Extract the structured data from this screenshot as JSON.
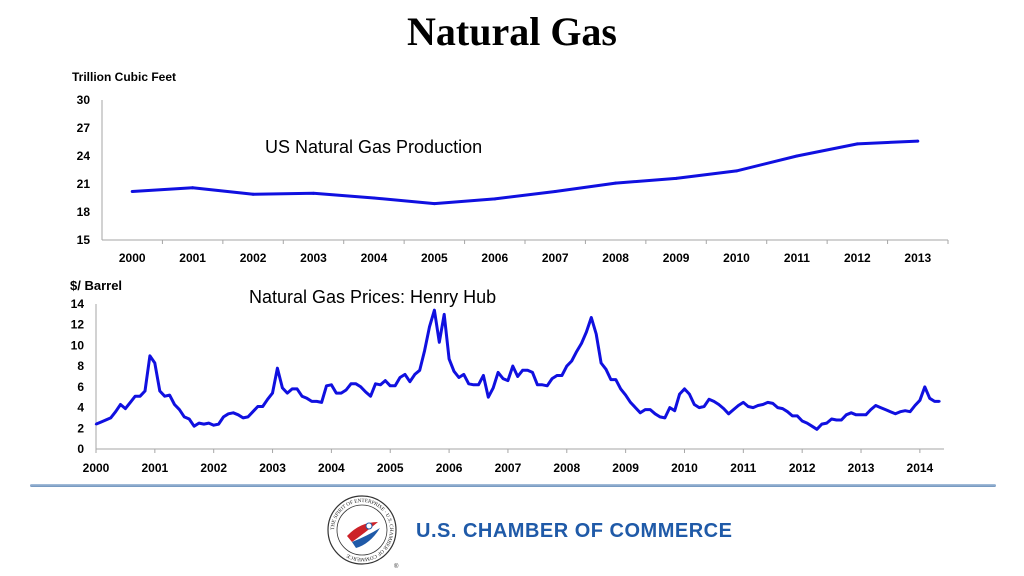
{
  "page": {
    "title": "Natural Gas"
  },
  "colors": {
    "series": "#1010e0",
    "axis": "#a6a6a6",
    "brand": "#1f5aa8",
    "seal_red": "#cc2229"
  },
  "chart_data": [
    {
      "type": "line",
      "title": "US Natural Gas Production",
      "ylabel": "Trillion Cubic Feet",
      "xlabel": "",
      "ylim": [
        15,
        30
      ],
      "yticks": [
        15,
        18,
        21,
        24,
        27,
        30
      ],
      "categories": [
        "2000",
        "2001",
        "2002",
        "2003",
        "2004",
        "2005",
        "2006",
        "2007",
        "2008",
        "2009",
        "2010",
        "2011",
        "2012",
        "2013"
      ],
      "values": [
        20.2,
        20.6,
        19.9,
        20.0,
        19.5,
        18.9,
        19.4,
        20.2,
        21.1,
        21.6,
        22.4,
        24.0,
        25.3,
        25.6
      ],
      "grid": false,
      "legend": "none"
    },
    {
      "type": "line",
      "title": "Natural Gas Prices: Henry Hub",
      "ylabel": "$/ Barrel",
      "xlabel": "",
      "ylim": [
        0,
        14
      ],
      "yticks": [
        0,
        2,
        4,
        6,
        8,
        10,
        12,
        14
      ],
      "xticks": [
        "2000",
        "2001",
        "2002",
        "2003",
        "2004",
        "2005",
        "2006",
        "2007",
        "2008",
        "2009",
        "2010",
        "2011",
        "2012",
        "2013",
        "2014"
      ],
      "x_start": "2000-01",
      "x_frequency": "monthly",
      "values": [
        2.4,
        2.6,
        2.8,
        3.0,
        3.6,
        4.3,
        3.9,
        4.5,
        5.1,
        5.1,
        5.6,
        9.0,
        8.3,
        5.6,
        5.1,
        5.2,
        4.3,
        3.8,
        3.1,
        2.9,
        2.2,
        2.5,
        2.4,
        2.5,
        2.3,
        2.4,
        3.1,
        3.4,
        3.5,
        3.3,
        3.0,
        3.1,
        3.6,
        4.1,
        4.1,
        4.8,
        5.4,
        7.8,
        5.9,
        5.4,
        5.8,
        5.8,
        5.1,
        4.9,
        4.6,
        4.6,
        4.5,
        6.1,
        6.2,
        5.4,
        5.4,
        5.7,
        6.3,
        6.3,
        6.0,
        5.5,
        5.1,
        6.3,
        6.2,
        6.6,
        6.1,
        6.1,
        6.9,
        7.2,
        6.5,
        7.2,
        7.6,
        9.5,
        11.8,
        13.4,
        10.3,
        13.0,
        8.7,
        7.5,
        6.9,
        7.2,
        6.3,
        6.2,
        6.2,
        7.1,
        5.0,
        5.9,
        7.4,
        6.8,
        6.6,
        8.0,
        7.0,
        7.6,
        7.6,
        7.4,
        6.2,
        6.2,
        6.1,
        6.8,
        7.1,
        7.1,
        8.0,
        8.5,
        9.4,
        10.2,
        11.3,
        12.7,
        11.1,
        8.3,
        7.7,
        6.7,
        6.7,
        5.8,
        5.2,
        4.5,
        4.0,
        3.5,
        3.8,
        3.8,
        3.4,
        3.1,
        3.0,
        4.0,
        3.7,
        5.3,
        5.8,
        5.3,
        4.3,
        4.0,
        4.1,
        4.8,
        4.6,
        4.3,
        3.9,
        3.4,
        3.8,
        4.2,
        4.5,
        4.1,
        4.0,
        4.2,
        4.3,
        4.5,
        4.4,
        4.0,
        3.9,
        3.6,
        3.2,
        3.2,
        2.7,
        2.5,
        2.2,
        1.9,
        2.4,
        2.5,
        2.9,
        2.8,
        2.8,
        3.3,
        3.5,
        3.3,
        3.3,
        3.3,
        3.8,
        4.2,
        4.0,
        3.8,
        3.6,
        3.4,
        3.6,
        3.7,
        3.6,
        4.2,
        4.7,
        6.0,
        4.9,
        4.6,
        4.6
      ],
      "grid": false,
      "legend": "none"
    }
  ],
  "footer": {
    "org_name": "U.S. CHAMBER OF COMMERCE",
    "seal_text": "THE SPIRIT OF ENTERPRISE · U.S. CHAMBER OF COMMERCE"
  }
}
